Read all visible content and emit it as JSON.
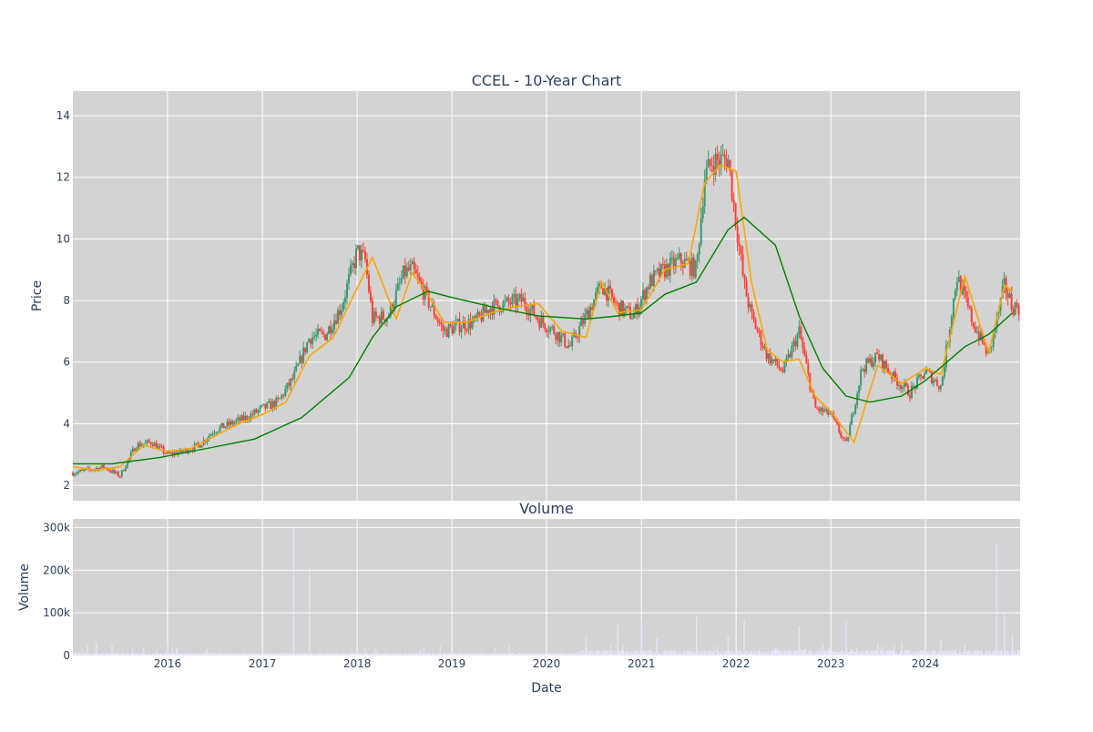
{
  "chart_data": [
    {
      "type": "candlestick",
      "title": "CCEL - 10-Year Chart",
      "xlabel": "",
      "ylabel": "Price",
      "x_range": [
        "2015-01-01",
        "2024-12-31"
      ],
      "ylim": [
        1.5,
        14.8
      ],
      "y_ticks": [
        2,
        4,
        6,
        8,
        10,
        12,
        14
      ],
      "x_tick_labels": [
        "2016",
        "2017",
        "2018",
        "2019",
        "2020",
        "2021",
        "2022",
        "2023",
        "2024"
      ],
      "grid": true,
      "colors": {
        "up": "#3d9970",
        "down": "#ff4136",
        "ma_short": "#ffa500",
        "ma_long": "#008000",
        "plot_bg": "#d3d3d3"
      },
      "series": [
        {
          "kind": "close",
          "x": [
            "2015-01",
            "2015-03",
            "2015-05",
            "2015-07",
            "2015-09",
            "2015-11",
            "2016-01",
            "2016-03",
            "2016-05",
            "2016-07",
            "2016-09",
            "2016-11",
            "2017-01",
            "2017-03",
            "2017-05",
            "2017-07",
            "2017-09",
            "2017-11",
            "2018-01",
            "2018-02",
            "2018-03",
            "2018-05",
            "2018-07",
            "2018-08",
            "2018-10",
            "2018-12",
            "2019-02",
            "2019-04",
            "2019-06",
            "2019-08",
            "2019-10",
            "2019-12",
            "2020-02",
            "2020-04",
            "2020-06",
            "2020-08",
            "2020-10",
            "2020-12",
            "2021-02",
            "2021-04",
            "2021-06",
            "2021-08",
            "2021-09",
            "2021-10",
            "2021-12",
            "2022-01",
            "2022-02",
            "2022-03",
            "2022-05",
            "2022-07",
            "2022-09",
            "2022-11",
            "2023-01",
            "2023-03",
            "2023-05",
            "2023-07",
            "2023-09",
            "2023-11",
            "2024-01",
            "2024-03",
            "2024-05",
            "2024-07",
            "2024-09",
            "2024-11",
            "2024-12"
          ],
          "values": [
            2.4,
            2.5,
            2.6,
            2.3,
            3.3,
            3.4,
            3.0,
            3.1,
            3.3,
            3.8,
            4.0,
            4.2,
            4.5,
            4.7,
            5.5,
            6.8,
            6.9,
            7.8,
            9.6,
            9.3,
            7.4,
            7.5,
            8.9,
            9.0,
            8.0,
            7.0,
            7.2,
            7.3,
            7.8,
            7.9,
            8.0,
            7.4,
            7.0,
            6.5,
            7.5,
            8.5,
            7.8,
            7.5,
            8.6,
            9.0,
            9.3,
            9.0,
            12.0,
            12.5,
            12.6,
            10.5,
            8.5,
            7.5,
            6.2,
            5.7,
            7.0,
            4.5,
            4.3,
            3.3,
            5.8,
            6.2,
            5.5,
            5.0,
            5.7,
            5.2,
            8.8,
            7.3,
            6.2,
            8.5,
            7.8
          ]
        },
        {
          "kind": "ma_short",
          "x": [
            "2015-01",
            "2015-04",
            "2015-07",
            "2015-10",
            "2016-01",
            "2016-04",
            "2016-07",
            "2016-10",
            "2017-01",
            "2017-04",
            "2017-07",
            "2017-10",
            "2018-01",
            "2018-03",
            "2018-06",
            "2018-08",
            "2018-10",
            "2018-12",
            "2019-03",
            "2019-06",
            "2019-09",
            "2019-12",
            "2020-03",
            "2020-06",
            "2020-08",
            "2020-10",
            "2021-01",
            "2021-04",
            "2021-07",
            "2021-09",
            "2021-11",
            "2022-01",
            "2022-03",
            "2022-05",
            "2022-07",
            "2022-09",
            "2022-11",
            "2023-01",
            "2023-04",
            "2023-07",
            "2023-10",
            "2024-01",
            "2024-03",
            "2024-06",
            "2024-09",
            "2024-11",
            "2024-12"
          ],
          "values": [
            2.6,
            2.5,
            2.6,
            3.3,
            3.1,
            3.2,
            3.6,
            4.0,
            4.3,
            4.7,
            6.2,
            6.8,
            8.4,
            9.4,
            7.4,
            8.9,
            8.2,
            7.3,
            7.3,
            7.6,
            7.8,
            7.9,
            7.0,
            6.8,
            8.6,
            7.6,
            7.7,
            9.0,
            9.2,
            11.8,
            12.4,
            12.2,
            8.6,
            6.4,
            6.0,
            6.1,
            4.9,
            4.4,
            3.4,
            5.9,
            5.3,
            5.8,
            5.6,
            8.8,
            6.3,
            8.5,
            8.3
          ]
        },
        {
          "kind": "ma_long",
          "x": [
            "2015-01",
            "2015-06",
            "2015-12",
            "2016-06",
            "2016-12",
            "2017-06",
            "2017-12",
            "2018-03",
            "2018-06",
            "2018-10",
            "2019-01",
            "2019-06",
            "2019-12",
            "2020-06",
            "2020-10",
            "2021-01",
            "2021-04",
            "2021-08",
            "2021-12",
            "2022-02",
            "2022-06",
            "2022-09",
            "2022-12",
            "2023-03",
            "2023-06",
            "2023-10",
            "2024-01",
            "2024-06",
            "2024-09",
            "2024-12"
          ],
          "values": [
            2.7,
            2.7,
            2.9,
            3.2,
            3.5,
            4.2,
            5.5,
            6.8,
            7.8,
            8.3,
            8.1,
            7.8,
            7.5,
            7.4,
            7.5,
            7.6,
            8.2,
            8.6,
            10.3,
            10.7,
            9.8,
            7.5,
            5.8,
            4.9,
            4.7,
            4.9,
            5.4,
            6.5,
            6.9,
            7.6
          ]
        }
      ],
      "annotations": []
    },
    {
      "type": "bar",
      "title": "Volume",
      "xlabel": "Date",
      "ylabel": "Volume",
      "ylim": [
        0,
        320000
      ],
      "y_ticks": [
        0,
        100000,
        200000,
        300000
      ],
      "y_tick_labels": [
        "0",
        "100k",
        "200k",
        "300k"
      ],
      "x_tick_labels": [
        "2016",
        "2017",
        "2018",
        "2019",
        "2020",
        "2021",
        "2022",
        "2023",
        "2024"
      ],
      "grid": true,
      "colors": {
        "bar": "#e6e6fa",
        "plot_bg": "#d3d3d3"
      },
      "series": [
        {
          "x": [
            "2015-04",
            "2015-06",
            "2015-10",
            "2016-01",
            "2016-06",
            "2017-05",
            "2017-07",
            "2018-09",
            "2019-02",
            "2020-06",
            "2020-10",
            "2021-01",
            "2021-03",
            "2021-08",
            "2021-12",
            "2022-02",
            "2022-06",
            "2022-09",
            "2022-12",
            "2023-03",
            "2023-07",
            "2023-10",
            "2024-03",
            "2024-06",
            "2024-10",
            "2024-11",
            "2024-12"
          ],
          "values": [
            30000,
            25000,
            20000,
            30000,
            15000,
            300000,
            205000,
            12000,
            10000,
            45000,
            72000,
            83000,
            40000,
            92000,
            45000,
            83000,
            20000,
            68000,
            30000,
            78000,
            30000,
            32000,
            38000,
            25000,
            260000,
            100000,
            50000
          ]
        }
      ]
    }
  ]
}
